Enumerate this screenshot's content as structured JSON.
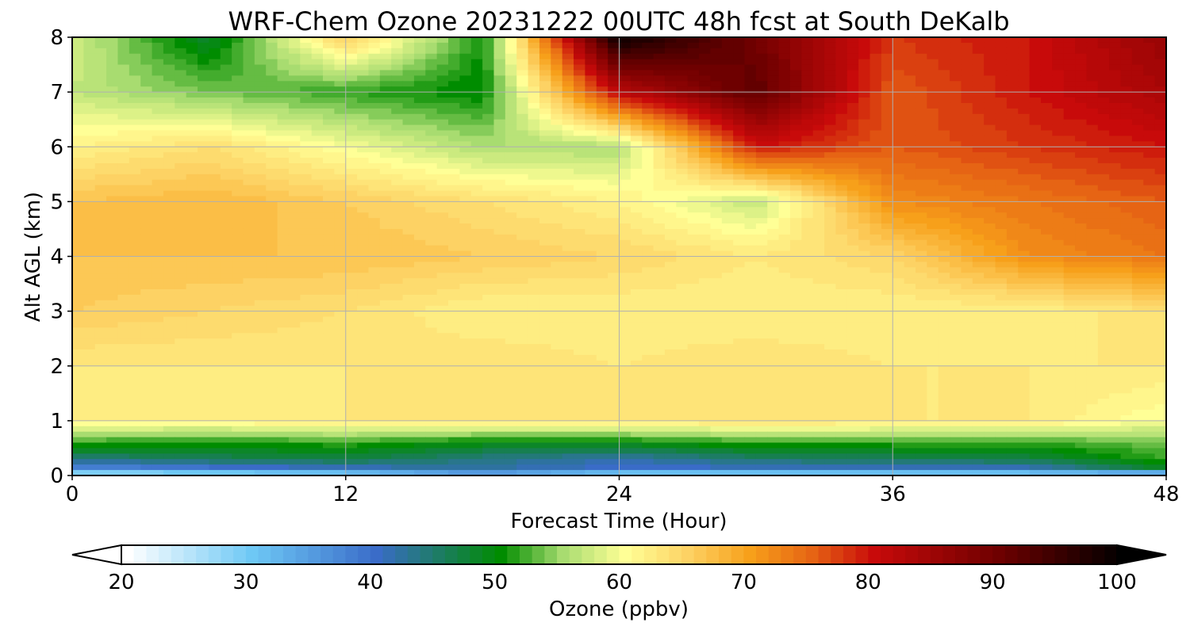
{
  "chart_data": {
    "type": "heatmap",
    "title": "WRF-Chem Ozone  20231222 00UTC 48h fcst at South DeKalb",
    "xlabel": "Forecast Time (Hour)",
    "ylabel": "Alt AGL (km)",
    "xlim": [
      0,
      48
    ],
    "ylim": [
      0,
      8
    ],
    "xticks": [
      "0",
      "12",
      "24",
      "36",
      "48"
    ],
    "yticks": [
      "0",
      "1",
      "2",
      "3",
      "4",
      "5",
      "6",
      "7",
      "8"
    ],
    "grid": true,
    "x": [
      0,
      6,
      12,
      18,
      24,
      30,
      36,
      42,
      48
    ],
    "y": [
      0,
      0.1,
      0.3,
      0.6,
      1,
      2,
      3,
      4,
      5,
      6,
      7,
      8
    ],
    "z": [
      [
        22,
        23,
        24,
        30,
        24,
        24,
        24,
        24,
        20
      ],
      [
        36,
        38,
        40,
        42,
        40,
        40,
        40,
        40,
        48
      ],
      [
        44,
        46,
        47,
        44,
        42,
        45,
        46,
        47,
        52
      ],
      [
        52,
        51,
        52,
        50,
        50,
        52,
        52,
        52,
        54
      ],
      [
        62,
        62,
        63,
        63,
        63,
        64,
        63,
        63,
        60
      ],
      [
        63,
        63,
        63,
        64,
        63,
        64,
        63,
        63,
        63
      ],
      [
        66,
        65,
        64,
        62,
        62,
        62,
        62,
        62,
        64
      ],
      [
        67,
        67,
        67,
        66,
        65,
        63,
        65,
        72,
        74
      ],
      [
        67,
        68,
        66,
        64,
        62,
        57,
        72,
        74,
        76
      ],
      [
        62,
        64,
        60,
        56,
        56,
        80,
        76,
        78,
        80
      ],
      [
        57,
        54,
        52,
        50,
        82,
        92,
        76,
        80,
        84
      ],
      [
        58,
        48,
        66,
        51,
        100,
        90,
        78,
        80,
        86
      ]
    ],
    "colorbar": {
      "label": "Ozone  (ppbv)",
      "min": 20,
      "max": 100,
      "ticks": [
        "20",
        "30",
        "40",
        "50",
        "60",
        "70",
        "80",
        "90",
        "100"
      ],
      "stops": [
        [
          20,
          "#ffffff"
        ],
        [
          30,
          "#6ec8f5"
        ],
        [
          40,
          "#3a6cc8"
        ],
        [
          50,
          "#008c00"
        ],
        [
          55,
          "#a8dc70"
        ],
        [
          60,
          "#ffff96"
        ],
        [
          65,
          "#fdd264"
        ],
        [
          70,
          "#f7a01a"
        ],
        [
          75,
          "#e66414"
        ],
        [
          80,
          "#c80a0a"
        ],
        [
          90,
          "#6e0000"
        ],
        [
          100,
          "#000000"
        ]
      ]
    }
  }
}
